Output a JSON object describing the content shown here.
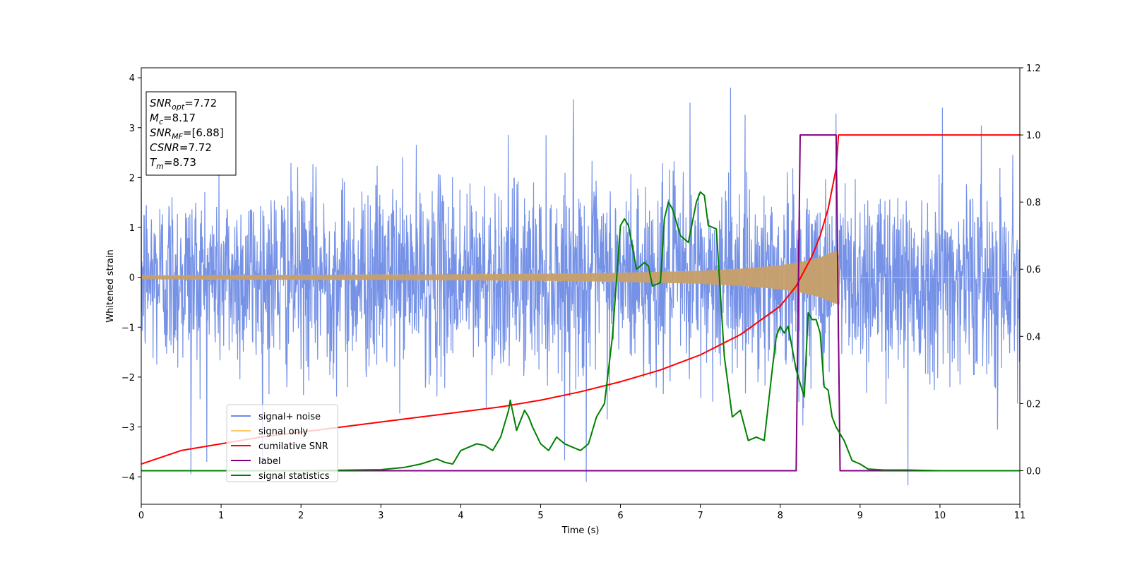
{
  "chart_data": {
    "type": "line",
    "xlabel": "Time (s)",
    "ylabel_left": "Whitened strain",
    "ylabel_right": "",
    "xlim": [
      0,
      11
    ],
    "ylim_left": [
      -4.55,
      4.2
    ],
    "ylim_right": [
      -0.1,
      1.2
    ],
    "x_ticks": [
      0,
      1,
      2,
      3,
      4,
      5,
      6,
      7,
      8,
      9,
      10,
      11
    ],
    "y_ticks_left": [
      -4,
      -3,
      -2,
      -1,
      0,
      1,
      2,
      3,
      4
    ],
    "y_ticks_right": [
      0.0,
      0.2,
      0.4,
      0.6,
      0.8,
      1.0,
      1.2
    ],
    "y_tick_labels_right": [
      "0.0",
      "0.2",
      "0.4",
      "0.6",
      "0.8",
      "1.0",
      "1.2"
    ],
    "grid": false,
    "legend_position": "lower-left",
    "legend": [
      {
        "label": "signal+ noise",
        "color": "#6f8ce6"
      },
      {
        "label": "signal only",
        "color": "#ffc864"
      },
      {
        "label": "cumilative SNR",
        "color": "#ff0000"
      },
      {
        "label": "label",
        "color": "#800080"
      },
      {
        "label": "signal statistics",
        "color": "#008000"
      }
    ],
    "info_box": [
      {
        "base": "SNR",
        "sub": "opt",
        "value": "=7.72"
      },
      {
        "base": "M",
        "sub": "c",
        "value": "=8.17"
      },
      {
        "base": "SNR",
        "sub": "MF",
        "value": "=[6.88]"
      },
      {
        "base": "CSNR",
        "sub": "",
        "value": "=7.72"
      },
      {
        "base": "T",
        "sub": "m",
        "value": "=8.73"
      }
    ],
    "series": [
      {
        "name": "signal+ noise",
        "axis": "left",
        "color": "#6f8ce6",
        "description_stats": {
          "std": 0.95,
          "spike_peaks_x": [
            0.62,
            5.57,
            7.38,
            9.6,
            10.03
          ]
        },
        "notable_points": [
          [
            0.62,
            -3.95
          ],
          [
            5.57,
            -4.1
          ],
          [
            5.41,
            3.57
          ],
          [
            6.87,
            3.5
          ],
          [
            7.38,
            3.8
          ],
          [
            8.7,
            3.28
          ],
          [
            9.6,
            -4.17
          ],
          [
            10.03,
            3.4
          ]
        ]
      },
      {
        "name": "signal only",
        "axis": "left",
        "color": "#ffc864",
        "envelope": [
          [
            0,
            0.04
          ],
          [
            2,
            0.05
          ],
          [
            4,
            0.06
          ],
          [
            5,
            0.07
          ],
          [
            6,
            0.09
          ],
          [
            7,
            0.13
          ],
          [
            7.5,
            0.17
          ],
          [
            8,
            0.24
          ],
          [
            8.3,
            0.32
          ],
          [
            8.5,
            0.4
          ],
          [
            8.65,
            0.5
          ],
          [
            8.73,
            0.55
          ],
          [
            8.74,
            0.0
          ],
          [
            11,
            0.0
          ]
        ]
      },
      {
        "name": "cumilative SNR",
        "axis": "right",
        "color": "#ff0000",
        "x": [
          0,
          0.5,
          1,
          1.5,
          2,
          2.5,
          3,
          3.5,
          4,
          4.5,
          5,
          5.5,
          6,
          6.5,
          7,
          7.5,
          8,
          8.2,
          8.4,
          8.5,
          8.6,
          8.7,
          8.73,
          9,
          10,
          11
        ],
        "y": [
          0.02,
          0.06,
          0.08,
          0.1,
          0.115,
          0.13,
          0.145,
          0.16,
          0.175,
          0.19,
          0.21,
          0.235,
          0.265,
          0.3,
          0.345,
          0.405,
          0.49,
          0.55,
          0.64,
          0.7,
          0.78,
          0.9,
          1.0,
          1.0,
          1.0,
          1.0
        ]
      },
      {
        "name": "label",
        "axis": "right",
        "color": "#800080",
        "x": [
          0,
          8.2,
          8.25,
          8.7,
          8.75,
          11
        ],
        "y": [
          0,
          0,
          1,
          1,
          0,
          0
        ]
      },
      {
        "name": "signal statistics",
        "axis": "right",
        "color": "#008000",
        "x": [
          0,
          1,
          2,
          3,
          3.3,
          3.5,
          3.7,
          3.8,
          3.9,
          4.0,
          4.1,
          4.2,
          4.3,
          4.4,
          4.5,
          4.6,
          4.62,
          4.7,
          4.8,
          4.85,
          4.9,
          5.0,
          5.1,
          5.2,
          5.3,
          5.4,
          5.5,
          5.6,
          5.7,
          5.8,
          5.9,
          6.0,
          6.05,
          6.1,
          6.2,
          6.3,
          6.35,
          6.4,
          6.5,
          6.55,
          6.6,
          6.65,
          6.75,
          6.85,
          6.95,
          7.0,
          7.05,
          7.1,
          7.2,
          7.3,
          7.4,
          7.5,
          7.6,
          7.7,
          7.8,
          7.9,
          7.95,
          8.0,
          8.05,
          8.1,
          8.2,
          8.3,
          8.35,
          8.4,
          8.45,
          8.5,
          8.55,
          8.6,
          8.65,
          8.7,
          8.8,
          8.9,
          9.0,
          9.1,
          9.3,
          9.6,
          10,
          11
        ],
        "y": [
          0.0,
          0.0,
          0.0,
          0.003,
          0.01,
          0.02,
          0.035,
          0.025,
          0.02,
          0.06,
          0.07,
          0.08,
          0.075,
          0.06,
          0.1,
          0.18,
          0.21,
          0.12,
          0.18,
          0.16,
          0.13,
          0.08,
          0.06,
          0.1,
          0.08,
          0.07,
          0.06,
          0.08,
          0.16,
          0.2,
          0.4,
          0.73,
          0.75,
          0.73,
          0.6,
          0.62,
          0.61,
          0.55,
          0.56,
          0.75,
          0.8,
          0.78,
          0.7,
          0.68,
          0.8,
          0.83,
          0.82,
          0.73,
          0.72,
          0.34,
          0.16,
          0.18,
          0.09,
          0.1,
          0.09,
          0.3,
          0.4,
          0.43,
          0.41,
          0.43,
          0.3,
          0.22,
          0.47,
          0.45,
          0.45,
          0.41,
          0.25,
          0.24,
          0.16,
          0.13,
          0.09,
          0.03,
          0.02,
          0.005,
          0.002,
          0.002,
          0.0,
          0.0
        ]
      }
    ]
  }
}
